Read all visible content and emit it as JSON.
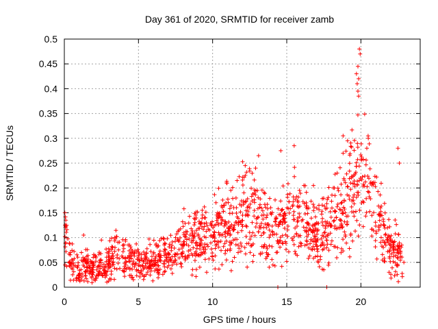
{
  "chart_data": {
    "type": "scatter",
    "title": "Day 361 of 2020, SRMTID for receiver zamb",
    "xlabel": "GPS time / hours",
    "ylabel": "SRMTID / TECUs",
    "xlim": [
      0,
      24
    ],
    "ylim": [
      0,
      0.5
    ],
    "xticks": [
      0,
      5,
      10,
      15,
      20
    ],
    "xtick_labels": [
      "0",
      "5",
      "10",
      "15",
      "20"
    ],
    "yticks": [
      0,
      0.05,
      0.1,
      0.15,
      0.2,
      0.25,
      0.3,
      0.35,
      0.4,
      0.45,
      0.5
    ],
    "ytick_labels": [
      "0",
      "0.05",
      "0.1",
      "0.15",
      "0.2",
      "0.25",
      "0.3",
      "0.35",
      "0.4",
      "0.45",
      "0.5"
    ],
    "grid": true,
    "marker": "+",
    "color": "#ff0000",
    "series": [
      {
        "name": "zamb",
        "trend": {
          "x": [
            0.0,
            0.1,
            0.3,
            0.6,
            1.0,
            1.3,
            1.6,
            2.0,
            2.5,
            3.0,
            3.5,
            4.0,
            4.5,
            5.0,
            5.5,
            6.0,
            6.5,
            7.0,
            7.5,
            8.0,
            8.5,
            9.0,
            9.5,
            10.0,
            10.5,
            11.0,
            11.5,
            12.0,
            12.5,
            13.0,
            13.5,
            14.0,
            14.5,
            15.0,
            15.5,
            16.0,
            16.5,
            17.0,
            17.5,
            18.0,
            18.5,
            19.0,
            19.5,
            19.8,
            20.0,
            20.5,
            21.0,
            21.5,
            22.0,
            22.5,
            22.8
          ],
          "y": [
            0.11,
            0.1,
            0.06,
            0.04,
            0.03,
            0.05,
            0.04,
            0.035,
            0.04,
            0.045,
            0.07,
            0.055,
            0.05,
            0.045,
            0.05,
            0.055,
            0.06,
            0.065,
            0.075,
            0.085,
            0.09,
            0.09,
            0.1,
            0.105,
            0.12,
            0.125,
            0.13,
            0.15,
            0.16,
            0.14,
            0.13,
            0.11,
            0.12,
            0.14,
            0.15,
            0.14,
            0.12,
            0.1,
            0.12,
            0.13,
            0.14,
            0.17,
            0.2,
            0.26,
            0.22,
            0.2,
            0.16,
            0.1,
            0.08,
            0.07,
            0.055
          ]
        },
        "points": [
          [
            14.4,
            0.0
          ],
          [
            17.7,
            0.0
          ],
          [
            19.7,
            0.43
          ],
          [
            19.75,
            0.41
          ],
          [
            19.8,
            0.395
          ],
          [
            19.85,
            0.42
          ],
          [
            19.9,
            0.48
          ],
          [
            19.95,
            0.47
          ],
          [
            19.8,
            0.445
          ],
          [
            19.85,
            0.385
          ],
          [
            18.8,
            0.305
          ],
          [
            19.1,
            0.295
          ],
          [
            20.5,
            0.3
          ],
          [
            20.4,
            0.28
          ],
          [
            15.5,
            0.285
          ],
          [
            14.6,
            0.275
          ],
          [
            22.5,
            0.28
          ],
          [
            22.6,
            0.25
          ],
          [
            13.1,
            0.265
          ],
          [
            12.9,
            0.24
          ],
          [
            12.2,
            0.245
          ],
          [
            18.8,
            0.27
          ],
          [
            18.4,
            0.23
          ],
          [
            16.8,
            0.205
          ],
          [
            20.8,
            0.21
          ],
          [
            0.1,
            0.135
          ],
          [
            0.15,
            0.125
          ],
          [
            1.3,
            0.105
          ],
          [
            2.5,
            0.095
          ],
          [
            3.4,
            0.1
          ],
          [
            7.5,
            0.1
          ],
          [
            9.3,
            0.155
          ],
          [
            10.9,
            0.17
          ],
          [
            1.05,
            0.012
          ],
          [
            2.0,
            0.015
          ],
          [
            4.6,
            0.02
          ],
          [
            9.6,
            0.03
          ],
          [
            14.3,
            0.07
          ],
          [
            17.5,
            0.035
          ],
          [
            21.9,
            0.03
          ],
          [
            22.9,
            0.05
          ]
        ]
      }
    ]
  }
}
